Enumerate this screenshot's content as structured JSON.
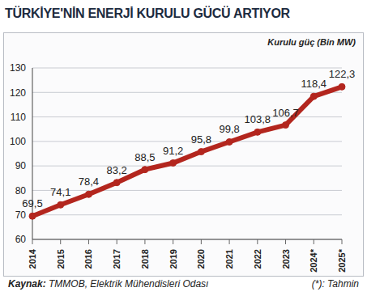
{
  "chart_data": {
    "type": "line",
    "title": "TÜRKİYE'NİN ENERJİ KURULU GÜCÜ ARTIYOR",
    "y_label": "Kurulu güç (Bin MW)",
    "categories": [
      "2014",
      "2015",
      "2016",
      "2017",
      "2018",
      "2019",
      "2020",
      "2021",
      "2022",
      "2023",
      "2024*",
      "2025*"
    ],
    "values": [
      69.5,
      74.1,
      78.4,
      83.2,
      88.5,
      91.2,
      95.8,
      99.8,
      103.8,
      106.7,
      118.4,
      122.3
    ],
    "value_labels": [
      "69,5",
      "74,1",
      "78,4",
      "83,2",
      "88,5",
      "91,2",
      "95,8",
      "99,8",
      "103,8",
      "106,7",
      "118,4",
      "122,3"
    ],
    "color": "#b3261e",
    "ylim": [
      60,
      130
    ],
    "yticks": [
      60,
      70,
      80,
      90,
      100,
      110,
      120,
      130
    ],
    "grid": true,
    "data_labels": true,
    "marker": "circle",
    "source_label": "Kaynak:",
    "source": "TMMOB, Elektrik Mühendisleri Odası",
    "note": "(*): Tahmin"
  }
}
